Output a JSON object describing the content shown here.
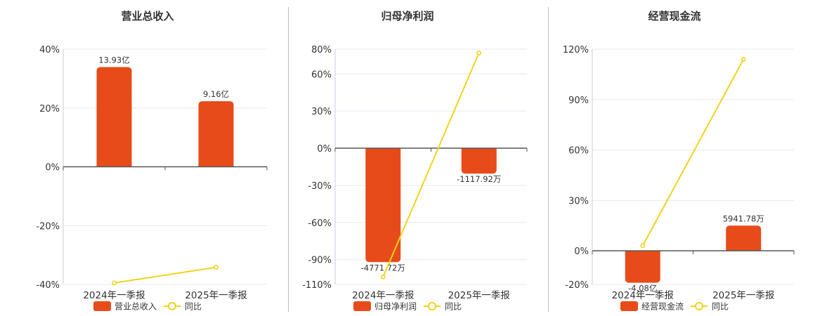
{
  "colors": {
    "bar": "#e84b1a",
    "line": "#f2d21b",
    "grid": "#e4e8ef",
    "axis": "#555555"
  },
  "chart_data": [
    {
      "type": "bar",
      "title": "营业总收入",
      "categories": [
        "2024年一季报",
        "2025年一季报"
      ],
      "ylim": [
        -40,
        40
      ],
      "yticks": [
        -40,
        -20,
        0,
        20,
        40
      ],
      "series": [
        {
          "name": "营业总收入",
          "type": "bar",
          "values": [
            33.9,
            22.3
          ],
          "labels": [
            "13.93亿",
            "9.16亿"
          ]
        },
        {
          "name": "同比",
          "type": "line",
          "values": [
            -39.5,
            -34.2
          ]
        }
      ]
    },
    {
      "type": "bar",
      "title": "归母净利润",
      "categories": [
        "2024年一季报",
        "2025年一季报"
      ],
      "ylim": [
        -110,
        80
      ],
      "yticks": [
        -110,
        -90,
        -60,
        -30,
        0,
        30,
        60,
        80
      ],
      "series": [
        {
          "name": "归母净利润",
          "type": "bar",
          "values": [
            -92,
            -20.5
          ],
          "labels": [
            "-4771.72万",
            "-1117.92万"
          ]
        },
        {
          "name": "同比",
          "type": "line",
          "values": [
            -104,
            77
          ]
        }
      ]
    },
    {
      "type": "bar",
      "title": "经营现金流",
      "categories": [
        "2024年一季报",
        "2025年一季报"
      ],
      "ylim": [
        -20,
        120
      ],
      "yticks": [
        -20,
        0,
        30,
        60,
        90,
        120
      ],
      "series": [
        {
          "name": "经营现金流",
          "type": "bar",
          "values": [
            -19,
            15
          ],
          "labels": [
            "-4.08亿",
            "5941.78万"
          ]
        },
        {
          "name": "同比",
          "type": "line",
          "values": [
            3,
            114
          ]
        }
      ]
    }
  ]
}
